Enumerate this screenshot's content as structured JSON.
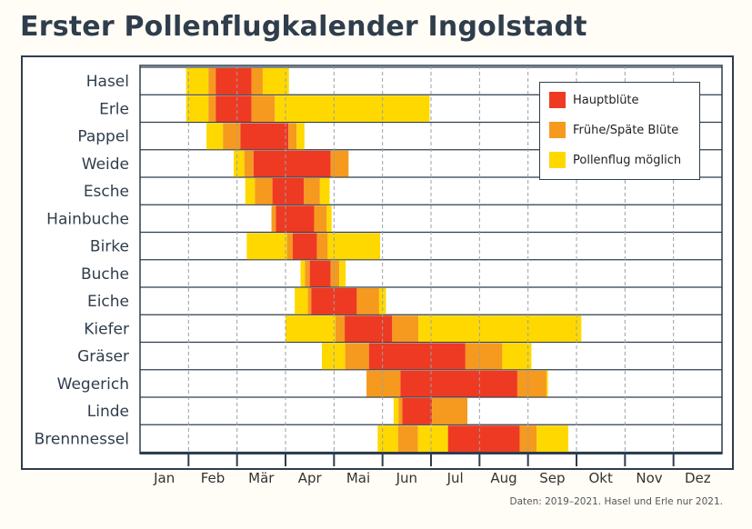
{
  "title": "Erster Pollenflugkalender Ingolstadt",
  "note": "Daten: 2019–2021. Hasel und Erle nur 2021.",
  "colors": {
    "main": "#ee3a22",
    "early_late": "#f59a1e",
    "possible": "#ffd800",
    "axis": "#2f3d4c",
    "bg": "#ffffff"
  },
  "legend": [
    {
      "key": "main",
      "label": "Hauptblüte"
    },
    {
      "key": "early_late",
      "label": "Frühe/Späte Blüte"
    },
    {
      "key": "possible",
      "label": "Pollenflug möglich"
    }
  ],
  "chart_data": {
    "type": "gantt",
    "title": "Erster Pollenflugkalender Ingolstadt",
    "x_unit": "month (1 = start of Jan, 13 = end of Dec)",
    "xlim": [
      1,
      13
    ],
    "months": [
      "Jan",
      "Feb",
      "Mär",
      "Apr",
      "Mai",
      "Jun",
      "Jul",
      "Aug",
      "Sep",
      "Okt",
      "Nov",
      "Dez"
    ],
    "series_legend": [
      "Hauptblüte",
      "Frühe/Späte Blüte",
      "Pollenflug möglich"
    ],
    "plants": [
      {
        "name": "Hasel",
        "segments": [
          [
            1.95,
            2.41,
            "possible"
          ],
          [
            2.41,
            2.56,
            "early_late"
          ],
          [
            2.56,
            3.3,
            "main"
          ],
          [
            3.3,
            3.53,
            "early_late"
          ],
          [
            3.53,
            4.07,
            "possible"
          ]
        ]
      },
      {
        "name": "Erle",
        "segments": [
          [
            1.95,
            2.41,
            "possible"
          ],
          [
            2.41,
            2.56,
            "early_late"
          ],
          [
            2.56,
            3.3,
            "main"
          ],
          [
            3.3,
            3.78,
            "early_late"
          ],
          [
            3.78,
            6.97,
            "possible"
          ]
        ]
      },
      {
        "name": "Pappel",
        "segments": [
          [
            2.37,
            2.71,
            "possible"
          ],
          [
            2.71,
            3.07,
            "early_late"
          ],
          [
            3.07,
            4.06,
            "main"
          ],
          [
            4.06,
            4.23,
            "early_late"
          ],
          [
            4.23,
            4.39,
            "possible"
          ]
        ]
      },
      {
        "name": "Weide",
        "segments": [
          [
            2.93,
            3.15,
            "possible"
          ],
          [
            3.15,
            3.34,
            "early_late"
          ],
          [
            3.34,
            4.93,
            "main"
          ],
          [
            4.93,
            5.3,
            "early_late"
          ]
        ]
      },
      {
        "name": "Esche",
        "segments": [
          [
            3.17,
            3.37,
            "possible"
          ],
          [
            3.37,
            3.73,
            "early_late"
          ],
          [
            3.73,
            4.38,
            "main"
          ],
          [
            4.38,
            4.71,
            "early_late"
          ],
          [
            4.71,
            4.91,
            "possible"
          ]
        ]
      },
      {
        "name": "Hainbuche",
        "segments": [
          [
            3.71,
            3.8,
            "early_late"
          ],
          [
            3.8,
            4.59,
            "main"
          ],
          [
            4.59,
            4.85,
            "early_late"
          ],
          [
            4.85,
            4.95,
            "possible"
          ]
        ]
      },
      {
        "name": "Birke",
        "segments": [
          [
            3.2,
            4.03,
            "possible"
          ],
          [
            4.03,
            4.15,
            "early_late"
          ],
          [
            4.15,
            4.65,
            "main"
          ],
          [
            4.65,
            4.87,
            "early_late"
          ],
          [
            4.87,
            5.95,
            "possible"
          ]
        ]
      },
      {
        "name": "Buche",
        "segments": [
          [
            4.31,
            4.4,
            "possible"
          ],
          [
            4.4,
            4.5,
            "early_late"
          ],
          [
            4.5,
            4.93,
            "main"
          ],
          [
            4.93,
            5.11,
            "early_late"
          ],
          [
            5.11,
            5.24,
            "possible"
          ]
        ]
      },
      {
        "name": "Eiche",
        "segments": [
          [
            4.19,
            4.46,
            "possible"
          ],
          [
            4.46,
            4.53,
            "early_late"
          ],
          [
            4.53,
            5.47,
            "main"
          ],
          [
            5.47,
            5.93,
            "early_late"
          ],
          [
            5.93,
            6.07,
            "possible"
          ]
        ]
      },
      {
        "name": "Kiefer",
        "segments": [
          [
            4.0,
            5.03,
            "possible"
          ],
          [
            5.03,
            5.22,
            "early_late"
          ],
          [
            5.22,
            6.2,
            "main"
          ],
          [
            6.2,
            6.74,
            "early_late"
          ],
          [
            6.74,
            10.1,
            "possible"
          ]
        ]
      },
      {
        "name": "Gräser",
        "segments": [
          [
            4.75,
            5.23,
            "possible"
          ],
          [
            5.23,
            5.72,
            "early_late"
          ],
          [
            5.72,
            7.71,
            "main"
          ],
          [
            7.71,
            8.47,
            "early_late"
          ],
          [
            8.47,
            9.07,
            "possible"
          ]
        ]
      },
      {
        "name": "Wegerich",
        "segments": [
          [
            5.67,
            6.37,
            "early_late"
          ],
          [
            6.37,
            8.78,
            "main"
          ],
          [
            8.78,
            9.38,
            "early_late"
          ],
          [
            9.38,
            9.41,
            "possible"
          ]
        ]
      },
      {
        "name": "Linde",
        "segments": [
          [
            6.23,
            6.33,
            "possible"
          ],
          [
            6.33,
            6.41,
            "early_late"
          ],
          [
            6.41,
            7.02,
            "main"
          ],
          [
            7.02,
            7.75,
            "early_late"
          ]
        ]
      },
      {
        "name": "Brennnessel",
        "segments": [
          [
            5.9,
            6.32,
            "possible"
          ],
          [
            6.32,
            6.73,
            "early_late"
          ],
          [
            6.73,
            7.35,
            "possible"
          ],
          [
            7.35,
            8.83,
            "main"
          ],
          [
            8.83,
            9.18,
            "early_late"
          ],
          [
            9.18,
            9.83,
            "possible"
          ]
        ]
      }
    ]
  }
}
